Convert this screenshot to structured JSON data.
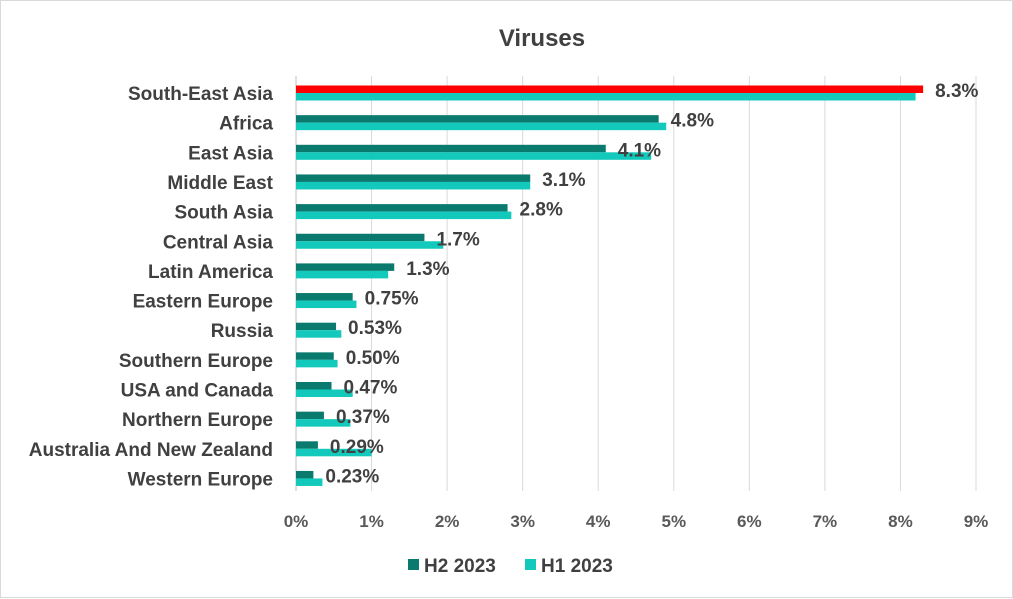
{
  "chart_data": {
    "type": "bar",
    "orientation": "horizontal",
    "title": "Viruses",
    "xlabel": "",
    "ylabel": "",
    "xlim": [
      0,
      9
    ],
    "x_ticks": [
      "0%",
      "1%",
      "2%",
      "3%",
      "4%",
      "5%",
      "6%",
      "7%",
      "8%",
      "9%"
    ],
    "grid": true,
    "legend_position": "bottom",
    "categories": [
      "South-East Asia",
      "Africa",
      "East Asia",
      "Middle East",
      "South Asia",
      "Central Asia",
      "Latin America",
      "Eastern Europe",
      "Russia",
      "Southern Europe",
      "USA and Canada",
      "Northern Europe",
      "Australia And New Zealand",
      "Western Europe"
    ],
    "series": [
      {
        "name": "H2 2023",
        "color": "#0b7a6e",
        "values": [
          8.3,
          4.8,
          4.1,
          3.1,
          2.8,
          1.7,
          1.3,
          0.75,
          0.53,
          0.5,
          0.47,
          0.37,
          0.29,
          0.23
        ]
      },
      {
        "name": "H1 2023",
        "color": "#12c9bc",
        "values": [
          8.2,
          4.9,
          4.7,
          3.1,
          2.85,
          1.95,
          1.22,
          0.8,
          0.6,
          0.55,
          0.75,
          0.72,
          1.0,
          0.35
        ]
      }
    ],
    "highlight": {
      "category_index": 0,
      "series_index": 0,
      "color": "#ff0000"
    },
    "data_labels": [
      "8.3%",
      "4.8%",
      "4.1%",
      "3.1%",
      "2.8%",
      "1.7%",
      "1.3%",
      "0.75%",
      "0.53%",
      "0.50%",
      "0.47%",
      "0.37%",
      "0.29%",
      "0.23%"
    ]
  }
}
